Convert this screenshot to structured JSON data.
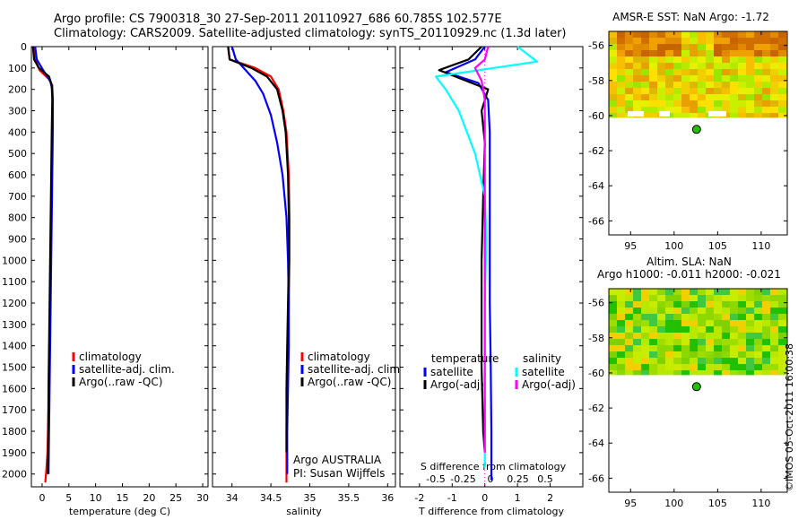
{
  "header": {
    "line1": "Argo profile: CS 7900318_30 27-Sep-2011 20110927_686 60.785S 102.577E",
    "line2": "Climatology: CARS2009. Satellite-adjusted climatology: synTS_20110929.nc (1.3d later)"
  },
  "colors": {
    "climatology": "#ff0000",
    "satellite": "#0000ff",
    "argo": "#000000",
    "satellite_s": "#00ffff",
    "argo_adj_s": "#ff00ff"
  },
  "depth_ticks": [
    0,
    100,
    200,
    300,
    400,
    500,
    600,
    700,
    800,
    900,
    1000,
    1100,
    1200,
    1300,
    1400,
    1500,
    1600,
    1700,
    1800,
    1900,
    2000
  ],
  "chart_data": [
    {
      "id": "temperature",
      "type": "line",
      "xlabel": "temperature (deg C)",
      "xlim": [
        -2,
        31
      ],
      "ylim": [
        2060,
        0
      ],
      "xticks": [
        0,
        5,
        10,
        15,
        20,
        25,
        30
      ],
      "series": [
        {
          "name": "climatology",
          "color": "#ff0000",
          "x": [
            -1.6,
            -1.3,
            -0.5,
            1.2,
            1.9,
            2.0,
            1.9,
            1.8,
            1.7,
            1.6,
            1.5,
            1.4,
            1.3,
            1.2,
            1.1,
            1.0,
            0.8,
            0.6
          ],
          "y": [
            0,
            60,
            110,
            150,
            180,
            250,
            400,
            600,
            800,
            1000,
            1200,
            1400,
            1500,
            1700,
            1800,
            1900,
            1980,
            2040
          ]
        },
        {
          "name": "satellite-adj. clim.",
          "color": "#0000ff",
          "x": [
            -1.3,
            -1.0,
            0.2,
            1.5,
            1.9,
            2.0,
            2.0,
            1.9,
            1.8,
            1.7,
            1.6,
            1.5,
            1.4,
            1.3,
            1.2
          ],
          "y": [
            0,
            60,
            110,
            160,
            200,
            250,
            400,
            600,
            800,
            1000,
            1200,
            1400,
            1600,
            1800,
            2000
          ]
        },
        {
          "name": "Argo(..raw -QC)",
          "color": "#000000",
          "x": [
            -1.7,
            -1.5,
            -0.6,
            1.3,
            1.8,
            1.9,
            1.8,
            1.7,
            1.6,
            1.5,
            1.4,
            1.3,
            1.2,
            1.1
          ],
          "y": [
            0,
            60,
            100,
            140,
            180,
            250,
            400,
            600,
            800,
            1000,
            1200,
            1400,
            1600,
            2000
          ]
        }
      ],
      "legend": [
        "climatology",
        "satellite-adj. clim.",
        "Argo(..raw -QC)"
      ]
    },
    {
      "id": "salinity",
      "type": "line",
      "xlabel": "salinity",
      "xlim": [
        33.75,
        36.1
      ],
      "ylim": [
        2060,
        0
      ],
      "xticks": [
        34,
        34.5,
        35,
        35.5,
        36
      ],
      "xtick_labels": [
        "34",
        "34.5",
        "35",
        "35.5",
        "36"
      ],
      "series": [
        {
          "name": "climatology",
          "color": "#ff0000",
          "x": [
            33.95,
            33.97,
            34.3,
            34.5,
            34.6,
            34.66,
            34.7,
            34.73,
            34.74,
            34.74,
            34.73,
            34.72,
            34.71,
            34.7,
            34.7
          ],
          "y": [
            0,
            60,
            100,
            140,
            200,
            300,
            400,
            600,
            800,
            1000,
            1200,
            1400,
            1600,
            1800,
            2040
          ]
        },
        {
          "name": "satellite-adj. clim.",
          "color": "#0000ff",
          "x": [
            34.0,
            34.05,
            34.15,
            34.3,
            34.4,
            34.5,
            34.58,
            34.65,
            34.7,
            34.72,
            34.73,
            34.73,
            34.72,
            34.71,
            34.71
          ],
          "y": [
            0,
            60,
            100,
            160,
            220,
            320,
            450,
            600,
            800,
            1000,
            1200,
            1400,
            1600,
            1800,
            2000
          ]
        },
        {
          "name": "Argo(..raw -QC)",
          "color": "#000000",
          "x": [
            33.95,
            33.97,
            34.25,
            34.45,
            34.58,
            34.65,
            34.69,
            34.72,
            34.73,
            34.73,
            34.72,
            34.71,
            34.7,
            34.7
          ],
          "y": [
            0,
            60,
            100,
            140,
            200,
            300,
            400,
            600,
            800,
            1000,
            1200,
            1400,
            1600,
            1900
          ]
        }
      ],
      "legend": [
        "climatology",
        "satellite-adj. clim.",
        "Argo(..raw -QC)"
      ],
      "footer": [
        "Argo AUSTRALIA",
        "PI: Susan Wijffels"
      ]
    },
    {
      "id": "difference",
      "type": "line",
      "xlabel": "T difference from climatology",
      "xlabel_top": "S difference from climatology",
      "xlim": [
        -2.6,
        3.0
      ],
      "ylim": [
        2060,
        0
      ],
      "xticks": [
        -2,
        -1,
        0,
        1,
        2
      ],
      "xticks_top": [
        -0.5,
        -0.25,
        0,
        0.25,
        0.5
      ],
      "xticks_top_labels": [
        "-0.5",
        "-0.25",
        "0",
        "0.25",
        "0.5"
      ],
      "series": [
        {
          "name": "temperature satellite",
          "color": "#0000ff",
          "x": [
            0,
            -0.3,
            -1.2,
            -0.2,
            0.1,
            0.15,
            0.15,
            0.15,
            0.15,
            0.15,
            0.18,
            0.2,
            0.2
          ],
          "y": [
            0,
            60,
            120,
            170,
            250,
            400,
            600,
            800,
            1000,
            1200,
            1500,
            1800,
            2030
          ]
        },
        {
          "name": "temperature Argo(-adj)",
          "color": "#000000",
          "x": [
            -0.1,
            -0.5,
            -1.4,
            -0.9,
            0.1,
            -0.1,
            0.0,
            -0.05,
            -0.1,
            -0.1,
            -0.1,
            -0.05,
            0.0
          ],
          "y": [
            0,
            60,
            110,
            140,
            200,
            300,
            450,
            700,
            1000,
            1300,
            1500,
            1800,
            1900
          ]
        },
        {
          "name": "salinity satellite",
          "color": "#00ffff",
          "x": [
            1.0,
            1.6,
            -1.5,
            -1.2,
            -0.8,
            -0.3,
            0.0,
            0.05,
            0.0,
            0.0,
            0.0,
            0.0
          ],
          "y": [
            0,
            70,
            140,
            200,
            300,
            500,
            700,
            900,
            1200,
            1500,
            1800,
            1970
          ]
        },
        {
          "name": "salinity Argo(-adj)",
          "color": "#ff00ff",
          "x": [
            0.1,
            0.0,
            -0.3,
            -0.1,
            0.0,
            0.0,
            0.0,
            0.0,
            0.0
          ],
          "y": [
            0,
            60,
            100,
            160,
            250,
            500,
            1000,
            1500,
            1900
          ]
        }
      ],
      "legend_groups": [
        {
          "header": "temperature",
          "items": [
            "satellite",
            "Argo(-adj)"
          ]
        },
        {
          "header": "salinity",
          "items": [
            "satellite",
            "Argo(-adj)"
          ]
        }
      ]
    }
  ],
  "maps": [
    {
      "id": "sst",
      "title": "AMSR-E SST: NaN  Argo: -1.72",
      "xticks": [
        95,
        100,
        105,
        110
      ],
      "yticks": [
        -56,
        -58,
        -60,
        -62,
        -64,
        -66
      ],
      "ytick_labels": [
        "-56",
        "-58",
        "-60",
        "-62",
        "-64",
        "-66"
      ],
      "xlim": [
        92.5,
        113
      ],
      "ylim": [
        -55.2,
        -66.8
      ],
      "data_top": -55.2,
      "data_bottom": -60.1,
      "argo_lon": 102.577,
      "argo_lat": -60.785
    },
    {
      "id": "sla",
      "title_lines": [
        "Altim. SLA: NaN",
        "Argo h1000: -0.011 h2000: -0.021"
      ],
      "xticks": [
        95,
        100,
        105,
        110
      ],
      "yticks": [
        -56,
        -58,
        -60,
        -62,
        -64,
        -66
      ],
      "ytick_labels": [
        "-56",
        "-58",
        "-60",
        "-62",
        "-64",
        "-66"
      ],
      "xlim": [
        92.5,
        113
      ],
      "ylim": [
        -55.2,
        -66.8
      ],
      "data_top": -55.2,
      "data_bottom": -60.1,
      "argo_lon": 102.577,
      "argo_lat": -60.785
    }
  ],
  "stamp": "©IMOS 05-Oct-2011 16:00:38"
}
